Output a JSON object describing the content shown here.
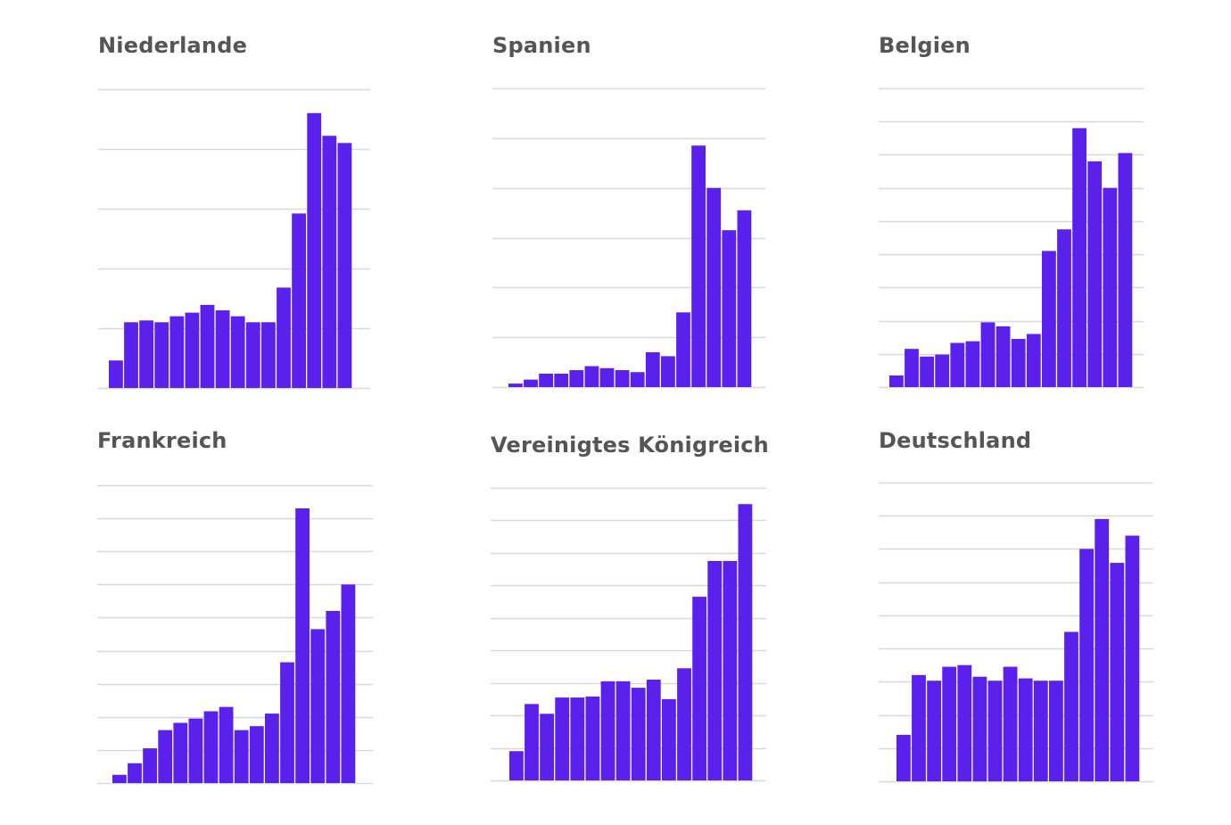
{
  "colors": {
    "bar": "#5b21ec",
    "grid": "#d9d9d9",
    "title": "#555555"
  },
  "chart_data": [
    {
      "type": "bar",
      "title": "Niederlande",
      "grid": true,
      "gridlines": 5,
      "values": [
        0.46,
        1.1,
        1.13,
        1.1,
        1.2,
        1.26,
        1.39,
        1.3,
        1.2,
        1.1,
        1.1,
        1.68,
        2.92,
        4.6,
        4.22,
        4.1
      ],
      "ylim": [
        0,
        5
      ]
    },
    {
      "type": "bar",
      "title": "Spanien",
      "grid": true,
      "gridlines": 6,
      "values": [
        0.07,
        0.15,
        0.27,
        0.27,
        0.34,
        0.42,
        0.38,
        0.34,
        0.3,
        0.7,
        0.62,
        1.5,
        4.85,
        4.0,
        3.15,
        3.55
      ],
      "ylim": [
        0,
        6
      ]
    },
    {
      "type": "bar",
      "title": "Belgien",
      "grid": true,
      "gridlines": 9,
      "values": [
        0.35,
        1.15,
        0.92,
        0.98,
        1.33,
        1.38,
        1.95,
        1.83,
        1.45,
        1.6,
        4.1,
        4.75,
        7.8,
        6.8,
        6.0,
        7.05
      ],
      "ylim": [
        0,
        9
      ]
    },
    {
      "type": "bar",
      "title": "Frankreich",
      "grid": true,
      "gridlines": 9,
      "values": [
        0.25,
        0.6,
        1.05,
        1.6,
        1.82,
        1.95,
        2.17,
        2.3,
        1.6,
        1.72,
        2.1,
        3.65,
        8.3,
        4.65,
        5.2,
        6.0
      ],
      "ylim": [
        0,
        9
      ]
    },
    {
      "type": "bar",
      "title": "Vereinigtes Königreich",
      "grid": true,
      "gridlines": 9,
      "values": [
        0.9,
        2.35,
        2.05,
        2.55,
        2.55,
        2.58,
        3.05,
        3.05,
        2.85,
        3.1,
        2.5,
        3.45,
        5.65,
        6.75,
        6.75,
        8.5
      ],
      "ylim": [
        0,
        9
      ]
    },
    {
      "type": "bar",
      "title": "Deutschland",
      "grid": true,
      "gridlines": 9,
      "values": [
        1.4,
        3.2,
        3.03,
        3.45,
        3.5,
        3.15,
        3.03,
        3.45,
        3.1,
        3.03,
        3.03,
        4.5,
        7.0,
        7.9,
        6.58,
        7.4
      ],
      "ylim": [
        0,
        9
      ]
    }
  ]
}
